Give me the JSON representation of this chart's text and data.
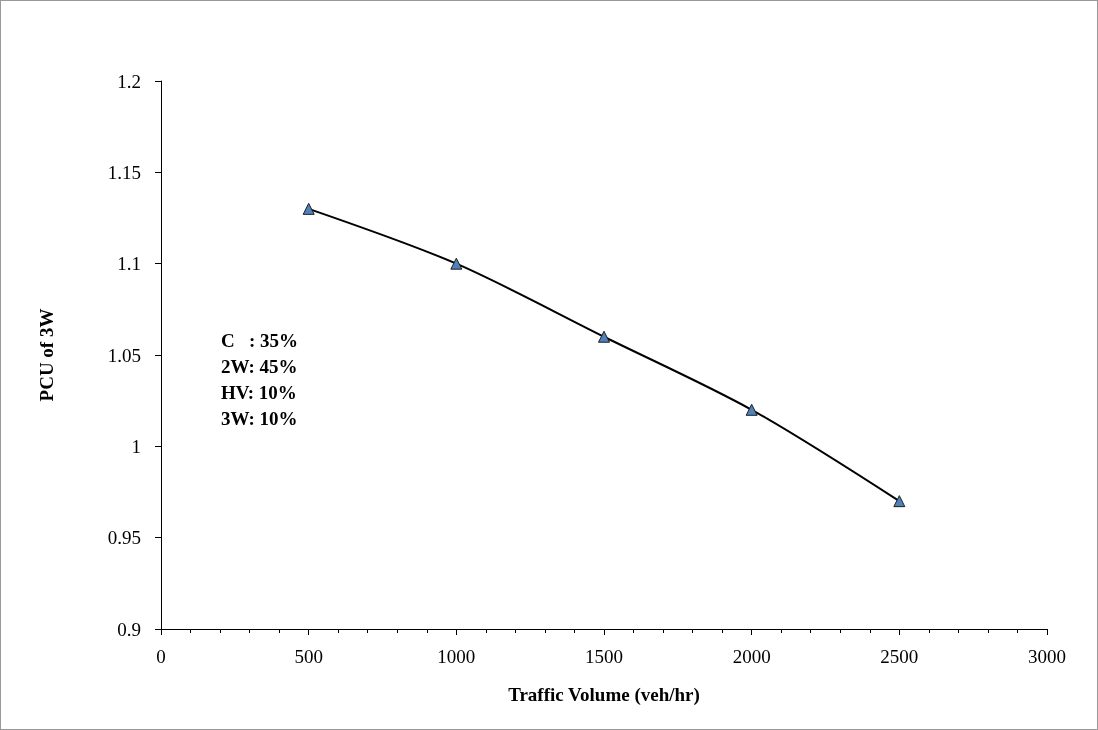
{
  "chart_data": {
    "type": "line",
    "xlabel": "Traffic Volume (veh/hr)",
    "ylabel": "PCU of 3W",
    "x": [
      500,
      1000,
      1500,
      2000,
      2500
    ],
    "series": [
      {
        "color": "#4f81bd",
        "values": [
          1.13,
          1.1,
          1.06,
          1.02,
          0.97
        ]
      }
    ],
    "xlim": [
      0,
      3000
    ],
    "xticks": [
      0,
      500,
      1000,
      1500,
      2000,
      2500,
      3000
    ],
    "ylim": [
      0.9,
      1.2
    ],
    "yticks": [
      0.9,
      0.95,
      1,
      1.05,
      1.1,
      1.15,
      1.2
    ],
    "grid": false,
    "marker": "triangle",
    "line_style": "solid",
    "annotations": [
      "C   : 35%",
      "2W: 45%",
      "HV: 10%",
      "3W: 10%"
    ]
  }
}
